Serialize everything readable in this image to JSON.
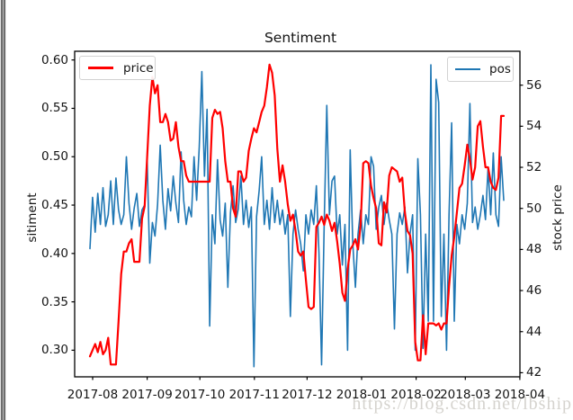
{
  "title": "Sentiment",
  "watermark": "https://blog.csdn.net/lbship",
  "axes": {
    "left": {
      "label": "sitiment",
      "ticks": [
        "0.30",
        "0.35",
        "0.40",
        "0.45",
        "0.50",
        "0.55",
        "0.60"
      ]
    },
    "right": {
      "label": "stock price",
      "ticks": [
        "42",
        "44",
        "46",
        "48",
        "50",
        "52",
        "54",
        "56"
      ]
    },
    "x": {
      "ticks": [
        "2017-08",
        "2017-09",
        "2017-10",
        "2017-11",
        "2017-12",
        "2018-01",
        "2018-02",
        "2018-03",
        "2018-04"
      ]
    }
  },
  "legends": {
    "price": {
      "label": "price",
      "color": "#ff0000"
    },
    "pos": {
      "label": "pos",
      "color": "#1f77b4"
    }
  },
  "chart_data": {
    "type": "line",
    "title": "Sentiment",
    "xlabel": "",
    "x_axis": {
      "tick_labels": [
        "2017-08",
        "2017-09",
        "2017-10",
        "2017-11",
        "2017-12",
        "2018-01",
        "2018-02",
        "2018-03",
        "2018-04"
      ],
      "kind": "date",
      "data_start": "2017-07-30",
      "data_end": "2018-03-22"
    },
    "y_left": {
      "label": "sitiment",
      "min": 0.2725,
      "max": 0.609,
      "ticks": [
        0.3,
        0.35,
        0.4,
        0.45,
        0.5,
        0.55,
        0.6
      ]
    },
    "y_right": {
      "label": "stock price",
      "min": 41.8,
      "max": 57.65,
      "ticks": [
        42,
        44,
        46,
        48,
        50,
        52,
        54,
        56
      ]
    },
    "legend_positions": {
      "price": "upper left",
      "pos": "upper right"
    },
    "grid": false,
    "series": [
      {
        "name": "pos",
        "axis": "left",
        "color": "#1f77b4",
        "linewidth": 1.6,
        "values": [
          0.405,
          0.458,
          0.422,
          0.462,
          0.43,
          0.468,
          0.428,
          0.44,
          0.475,
          0.43,
          0.478,
          0.445,
          0.43,
          0.44,
          0.5,
          0.452,
          0.425,
          0.447,
          0.462,
          0.428,
          0.445,
          0.45,
          0.497,
          0.39,
          0.432,
          0.418,
          0.451,
          0.512,
          0.455,
          0.425,
          0.467,
          0.444,
          0.48,
          0.452,
          0.432,
          0.505,
          0.455,
          0.43,
          0.448,
          0.438,
          0.5,
          0.455,
          0.51,
          0.588,
          0.48,
          0.549,
          0.325,
          0.44,
          0.41,
          0.497,
          0.435,
          0.418,
          0.452,
          0.365,
          0.442,
          0.47,
          0.432,
          0.446,
          0.48,
          0.43,
          0.455,
          0.427,
          0.448,
          0.283,
          0.438,
          0.465,
          0.5,
          0.43,
          0.455,
          0.425,
          0.468,
          0.432,
          0.455,
          0.43,
          0.445,
          0.42,
          0.44,
          0.335,
          0.42,
          0.445,
          0.425,
          0.41,
          0.382,
          0.44,
          0.42,
          0.445,
          0.43,
          0.47,
          0.4,
          0.285,
          0.43,
          0.553,
          0.44,
          0.475,
          0.48,
          0.42,
          0.44,
          0.388,
          0.43,
          0.3,
          0.507,
          0.41,
          0.365,
          0.42,
          0.445,
          0.41,
          0.44,
          0.43,
          0.5,
          0.49,
          0.425,
          0.448,
          0.46,
          0.43,
          0.452,
          0.435,
          0.42,
          0.322,
          0.42,
          0.442,
          0.43,
          0.448,
          0.38,
          0.42,
          0.44,
          0.3,
          0.498,
          0.44,
          0.302,
          0.42,
          0.33,
          0.595,
          0.33,
          0.58,
          0.556,
          0.335,
          0.42,
          0.3,
          0.44,
          0.535,
          0.33,
          0.43,
          0.41,
          0.44,
          0.425,
          0.452,
          0.555,
          0.432,
          0.448,
          0.425,
          0.44,
          0.46,
          0.435,
          0.489,
          0.44,
          0.504,
          0.44,
          0.428,
          0.5,
          0.455
        ]
      },
      {
        "name": "price",
        "axis": "right",
        "color": "#ff0000",
        "linewidth": 2.2,
        "values": [
          42.8,
          43.1,
          43.4,
          43.0,
          43.5,
          42.9,
          43.1,
          43.7,
          42.4,
          42.4,
          42.4,
          44.5,
          46.8,
          47.9,
          47.9,
          48.3,
          48.5,
          47.4,
          47.4,
          47.4,
          49.5,
          50.1,
          52.5,
          55.0,
          56.4,
          55.6,
          56.0,
          54.2,
          54.2,
          54.6,
          54.2,
          53.3,
          53.4,
          54.2,
          53.0,
          52.3,
          52.3,
          51.6,
          51.3,
          51.3,
          51.3,
          51.3,
          51.3,
          51.3,
          51.3,
          51.3,
          51.3,
          54.4,
          54.8,
          54.6,
          54.7,
          53.9,
          52.3,
          51.3,
          51.3,
          50.0,
          49.6,
          51.8,
          51.8,
          51.3,
          51.5,
          52.8,
          53.4,
          53.9,
          53.7,
          54.2,
          54.7,
          55.0,
          55.9,
          57.0,
          56.6,
          55.5,
          52.9,
          51.3,
          52.1,
          51.3,
          50.2,
          49.4,
          49.7,
          48.9,
          47.9,
          47.7,
          47.9,
          46.5,
          45.2,
          45.1,
          45.2,
          49.1,
          49.3,
          49.6,
          49.2,
          49.7,
          49.4,
          48.9,
          49.3,
          48.4,
          47.3,
          45.9,
          45.5,
          47.0,
          48.0,
          48.2,
          48.5,
          48.0,
          49.2,
          52.2,
          52.3,
          52.2,
          51.1,
          50.5,
          50.0,
          48.3,
          48.2,
          50.3,
          49.8,
          51.6,
          52.0,
          51.9,
          51.8,
          51.3,
          51.5,
          49.8,
          48.9,
          48.7,
          47.8,
          43.5,
          42.6,
          42.6,
          44.8,
          42.9,
          44.4,
          44.4,
          44.4,
          44.3,
          44.4,
          44.1,
          44.4,
          44.4,
          46.2,
          47.7,
          48.6,
          49.8,
          51.0,
          51.2,
          52.1,
          53.1,
          52.4,
          51.4,
          52.0,
          54.0,
          54.25,
          53.0,
          52.0,
          52.0,
          51.3,
          51.0,
          50.9,
          51.5,
          54.5,
          54.5
        ]
      }
    ]
  }
}
